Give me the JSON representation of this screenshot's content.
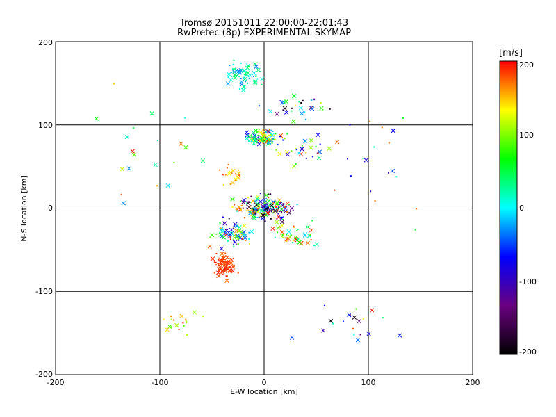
{
  "chart_data": {
    "type": "scatter",
    "title": "Tromsø 20151011 22:00:00-22:01:43",
    "subtitle": "RwPretec (8p) EXPERIMENTAL SKYMAP",
    "xlabel": "E-W location [km]",
    "ylabel": "N-S location [km]",
    "xlim": [
      -200,
      200
    ],
    "ylim": [
      -200,
      200
    ],
    "x_ticks": [
      "-200",
      "-100",
      "0",
      "100",
      "200"
    ],
    "y_ticks": [
      "-200",
      "-100",
      "0",
      "100",
      "200"
    ],
    "grid": true,
    "colorbar": {
      "label": "[m/s]",
      "range": [
        -200,
        200
      ],
      "ticks": [
        "-200",
        "-100",
        "0",
        "100",
        "200"
      ],
      "colors": [
        "#000000",
        "#6a0080",
        "#0000ff",
        "#00ffff",
        "#00ff00",
        "#ffff00",
        "#ff0000"
      ]
    },
    "markers": [
      "x",
      "dot"
    ],
    "clusters": [
      {
        "cx": -20,
        "cy": 160,
        "sx": 14,
        "sy": 14,
        "n": 70,
        "vmin": -40,
        "vmax": 60
      },
      {
        "cx": 30,
        "cy": 120,
        "sx": 25,
        "sy": 12,
        "n": 30,
        "vmin": -200,
        "vmax": 140
      },
      {
        "cx": 0,
        "cy": 85,
        "sx": 14,
        "sy": 8,
        "n": 100,
        "vmin": -80,
        "vmax": 200
      },
      {
        "cx": 40,
        "cy": 70,
        "sx": 25,
        "sy": 15,
        "n": 30,
        "vmin": -100,
        "vmax": 200
      },
      {
        "cx": -30,
        "cy": 40,
        "sx": 10,
        "sy": 8,
        "n": 20,
        "vmin": 130,
        "vmax": 200
      },
      {
        "cx": 0,
        "cy": 0,
        "sx": 22,
        "sy": 12,
        "n": 170,
        "vmin": -200,
        "vmax": 200
      },
      {
        "cx": -30,
        "cy": -30,
        "sx": 14,
        "sy": 12,
        "n": 70,
        "vmin": -120,
        "vmax": 200
      },
      {
        "cx": -40,
        "cy": -70,
        "sx": 9,
        "sy": 12,
        "n": 80,
        "vmin": 170,
        "vmax": 200
      },
      {
        "cx": 35,
        "cy": -30,
        "sx": 20,
        "sy": 15,
        "n": 40,
        "vmin": -40,
        "vmax": 200
      },
      {
        "cx": -80,
        "cy": -140,
        "sx": 15,
        "sy": 12,
        "n": 20,
        "vmin": 80,
        "vmax": 200
      },
      {
        "cx": 80,
        "cy": -140,
        "sx": 40,
        "sy": 30,
        "n": 20,
        "vmin": -200,
        "vmax": 200
      },
      {
        "cx": -110,
        "cy": 60,
        "sx": 40,
        "sy": 60,
        "n": 20,
        "vmin": -100,
        "vmax": 200
      },
      {
        "cx": 110,
        "cy": 60,
        "sx": 40,
        "sy": 60,
        "n": 20,
        "vmin": -100,
        "vmax": 200
      }
    ]
  }
}
